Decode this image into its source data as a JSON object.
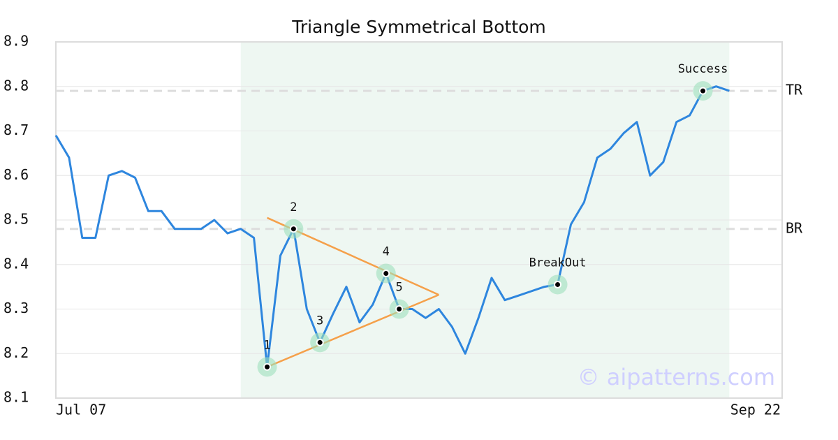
{
  "chart_data": {
    "type": "line",
    "title": "Triangle Symmetrical Bottom",
    "ylim": [
      8.1,
      8.9
    ],
    "yticks": [
      8.1,
      8.2,
      8.3,
      8.4,
      8.5,
      8.6,
      8.7,
      8.8,
      8.9
    ],
    "xlim": [
      0,
      55
    ],
    "xticks": [
      {
        "value": 0,
        "label": "Jul 07"
      },
      {
        "value": 55,
        "label": "Sep 22"
      }
    ],
    "grid": true,
    "color": "#2e86de",
    "values": [
      8.69,
      8.64,
      8.46,
      8.46,
      8.6,
      8.61,
      8.595,
      8.52,
      8.52,
      8.48,
      8.48,
      8.48,
      8.5,
      8.47,
      8.48,
      8.46,
      8.17,
      8.42,
      8.48,
      8.3,
      8.225,
      8.29,
      8.35,
      8.27,
      8.31,
      8.38,
      8.3,
      8.3,
      8.28,
      8.3,
      8.26,
      8.2,
      8.28,
      8.37,
      8.32,
      8.33,
      8.34,
      8.35,
      8.355,
      8.49,
      8.54,
      8.64,
      8.66,
      8.695,
      8.72,
      8.6,
      8.63,
      8.72,
      8.735,
      8.79,
      8.8,
      8.79
    ],
    "highlight_range": [
      14,
      51
    ],
    "reference_lines": [
      {
        "label": "TR",
        "value": 8.79
      },
      {
        "label": "BR",
        "value": 8.48
      }
    ],
    "triangle": {
      "color": "#f5a04a",
      "upper": {
        "x": [
          16,
          29
        ],
        "y": [
          8.505,
          8.332
        ]
      },
      "lower": {
        "x": [
          16,
          29
        ],
        "y": [
          8.17,
          8.332
        ]
      }
    },
    "annotations": [
      {
        "label": "1",
        "x": 16,
        "y": 8.17
      },
      {
        "label": "2",
        "x": 18,
        "y": 8.48
      },
      {
        "label": "3",
        "x": 20,
        "y": 8.225
      },
      {
        "label": "4",
        "x": 25,
        "y": 8.38
      },
      {
        "label": "5",
        "x": 26,
        "y": 8.3
      },
      {
        "label": "BreakOut",
        "x": 38,
        "y": 8.355
      },
      {
        "label": "Success",
        "x": 49,
        "y": 8.79
      }
    ],
    "watermark": "© aipatterns.com"
  }
}
